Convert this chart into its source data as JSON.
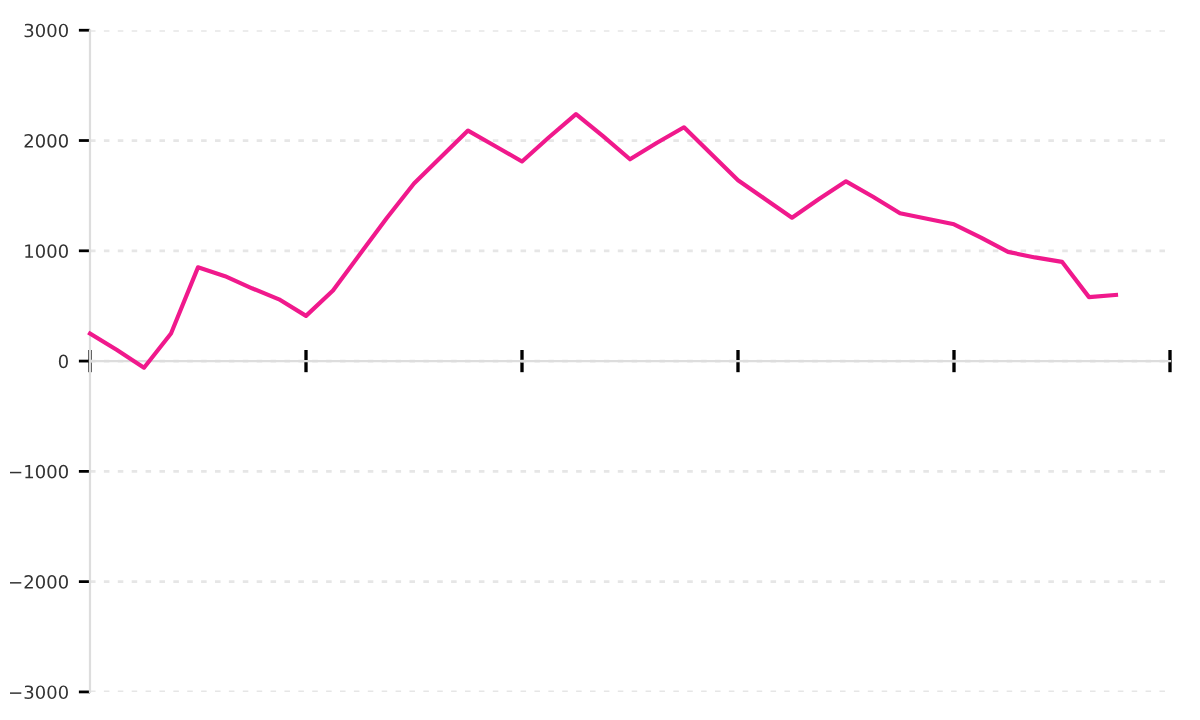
{
  "chart_data": {
    "type": "line",
    "categories": [
      null,
      null,
      null,
      null,
      null,
      null,
      null,
      null,
      null,
      null,
      null,
      null,
      null,
      null,
      null,
      null,
      null,
      null,
      null,
      null,
      null,
      null,
      null,
      null,
      null,
      null,
      null,
      null,
      null,
      null,
      null,
      null,
      null,
      null,
      null,
      null,
      null,
      null,
      null,
      null,
      null
    ],
    "series": [
      {
        "color": "#f0198c",
        "values": [
          250,
          100,
          -60,
          250,
          850,
          770,
          660,
          560,
          410,
          640,
          970,
          1300,
          1610,
          1850,
          2090,
          1950,
          1810,
          2030,
          2240,
          2040,
          1830,
          1980,
          2120,
          1880,
          1640,
          1470,
          1300,
          1470,
          1630,
          1490,
          1340,
          1290,
          1240,
          1120,
          990,
          940,
          900,
          580,
          600,
          null,
          null
        ]
      }
    ],
    "ylim": [
      -3000,
      3000
    ],
    "yticks": [
      {
        "value": -3000,
        "label": "−3000"
      },
      {
        "value": -2000,
        "label": "−2000"
      },
      {
        "value": -1000,
        "label": "−1000"
      },
      0,
      1000,
      2000,
      3000
    ],
    "grid": "y",
    "tick_labels": "y",
    "marker": "none",
    "line_style": "solid"
  }
}
